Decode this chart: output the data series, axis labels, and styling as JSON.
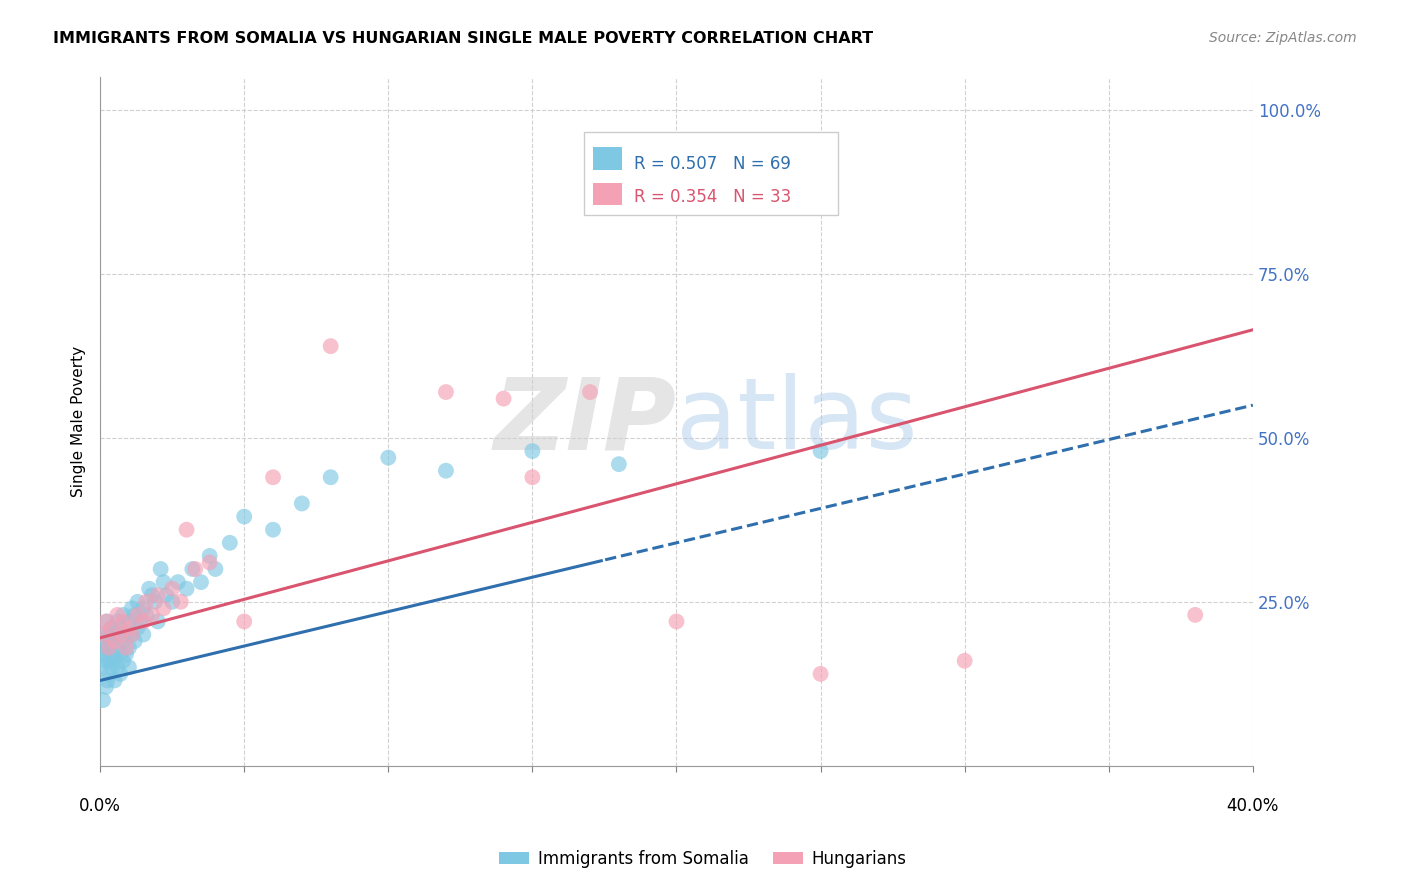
{
  "title": "IMMIGRANTS FROM SOMALIA VS HUNGARIAN SINGLE MALE POVERTY CORRELATION CHART",
  "source": "Source: ZipAtlas.com",
  "ylabel": "Single Male Poverty",
  "ytick_vals": [
    0.0,
    0.25,
    0.5,
    0.75,
    1.0
  ],
  "ytick_labels": [
    "",
    "25.0%",
    "50.0%",
    "75.0%",
    "100.0%"
  ],
  "legend_r1": "R = 0.507",
  "legend_n1": "N = 69",
  "legend_r2": "R = 0.354",
  "legend_n2": "N = 33",
  "legend_label1": "Immigrants from Somalia",
  "legend_label2": "Hungarians",
  "background_color": "#ffffff",
  "blue_color": "#7ec8e3",
  "pink_color": "#f4a0b5",
  "blue_line_color": "#2f6fad",
  "pink_line_color": "#d9546e",
  "watermark_zip": "ZIP",
  "watermark_atlas": "atlas",
  "xlim": [
    0,
    0.4
  ],
  "ylim": [
    0,
    1.05
  ],
  "blue_line_x0": 0.0,
  "blue_line_y0": 0.13,
  "blue_line_x1": 0.4,
  "blue_line_y1": 0.55,
  "blue_line_solid_end": 0.175,
  "pink_line_x0": 0.0,
  "pink_line_y0": 0.195,
  "pink_line_x1": 0.4,
  "pink_line_y1": 0.665,
  "somalia_x": [
    0.0005,
    0.001,
    0.001,
    0.0015,
    0.0015,
    0.002,
    0.002,
    0.002,
    0.0025,
    0.0025,
    0.003,
    0.003,
    0.003,
    0.003,
    0.004,
    0.004,
    0.004,
    0.004,
    0.005,
    0.005,
    0.005,
    0.006,
    0.006,
    0.006,
    0.007,
    0.007,
    0.007,
    0.008,
    0.008,
    0.008,
    0.009,
    0.009,
    0.01,
    0.01,
    0.01,
    0.011,
    0.011,
    0.012,
    0.012,
    0.013,
    0.013,
    0.014,
    0.015,
    0.015,
    0.016,
    0.017,
    0.018,
    0.019,
    0.02,
    0.021,
    0.022,
    0.023,
    0.025,
    0.027,
    0.03,
    0.032,
    0.035,
    0.038,
    0.04,
    0.045,
    0.05,
    0.06,
    0.07,
    0.08,
    0.1,
    0.12,
    0.15,
    0.18,
    0.25
  ],
  "somalia_y": [
    0.15,
    0.1,
    0.18,
    0.16,
    0.2,
    0.12,
    0.17,
    0.19,
    0.13,
    0.22,
    0.14,
    0.16,
    0.18,
    0.2,
    0.15,
    0.17,
    0.19,
    0.21,
    0.13,
    0.16,
    0.2,
    0.15,
    0.18,
    0.22,
    0.14,
    0.17,
    0.21,
    0.16,
    0.19,
    0.23,
    0.17,
    0.2,
    0.15,
    0.18,
    0.22,
    0.2,
    0.24,
    0.19,
    0.23,
    0.21,
    0.25,
    0.22,
    0.2,
    0.24,
    0.23,
    0.27,
    0.26,
    0.25,
    0.22,
    0.3,
    0.28,
    0.26,
    0.25,
    0.28,
    0.27,
    0.3,
    0.28,
    0.32,
    0.3,
    0.34,
    0.38,
    0.36,
    0.4,
    0.44,
    0.47,
    0.45,
    0.48,
    0.46,
    0.48
  ],
  "hungarian_x": [
    0.001,
    0.002,
    0.003,
    0.004,
    0.005,
    0.006,
    0.007,
    0.008,
    0.009,
    0.01,
    0.011,
    0.013,
    0.015,
    0.016,
    0.018,
    0.02,
    0.022,
    0.025,
    0.028,
    0.03,
    0.033,
    0.038,
    0.05,
    0.06,
    0.08,
    0.12,
    0.14,
    0.15,
    0.17,
    0.2,
    0.25,
    0.3,
    0.38
  ],
  "hungarian_y": [
    0.2,
    0.22,
    0.18,
    0.21,
    0.19,
    0.23,
    0.2,
    0.22,
    0.18,
    0.21,
    0.2,
    0.23,
    0.22,
    0.25,
    0.23,
    0.26,
    0.24,
    0.27,
    0.25,
    0.36,
    0.3,
    0.31,
    0.22,
    0.44,
    0.64,
    0.57,
    0.56,
    0.44,
    0.57,
    0.22,
    0.14,
    0.16,
    0.23
  ]
}
